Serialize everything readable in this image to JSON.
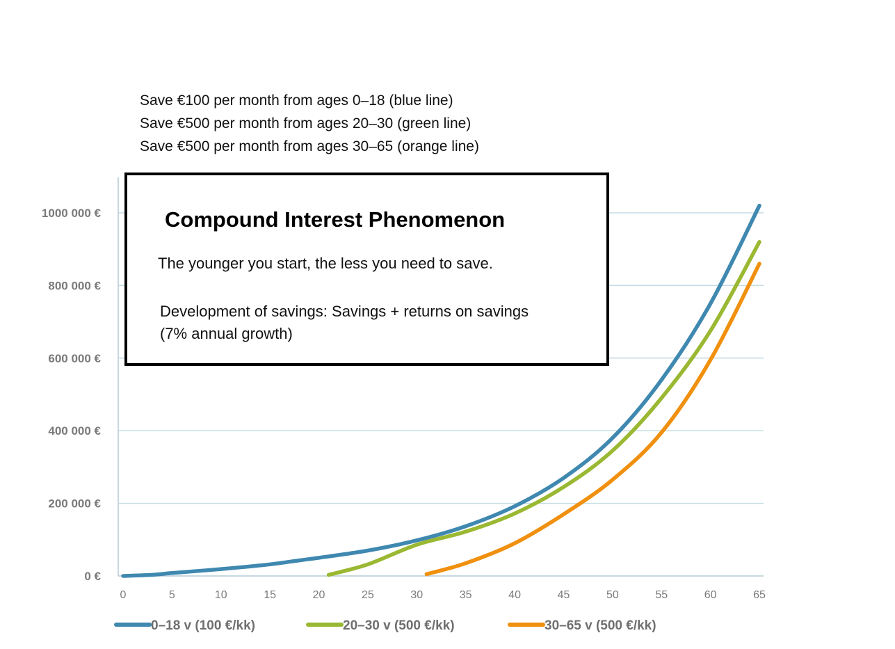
{
  "intro": {
    "lines": [
      "Save €100 per month from ages 0–18 (blue line)",
      "Save €500 per month from ages 20–30 (green line)",
      "Save €500 per month from ages 30–65 (orange line)"
    ]
  },
  "info_box": {
    "title": "Compound Interest Phenomenon",
    "subtitle": "The younger you start, the less you need to save.",
    "description_lines": [
      "Development of savings: Savings + returns on savings",
      "(7% annual growth)"
    ]
  },
  "colors": {
    "blue": "#3f88b0",
    "green": "#9ab832",
    "orange": "#f0900e",
    "grid": "#c5dbe4",
    "axis": "#b4ccd6"
  },
  "chart_data": {
    "type": "line",
    "xlabel": "",
    "ylabel": "",
    "xlim": [
      0,
      65
    ],
    "ylim": [
      0,
      1100000
    ],
    "x_ticks": [
      0,
      5,
      10,
      15,
      20,
      25,
      30,
      35,
      40,
      45,
      50,
      55,
      60,
      65
    ],
    "x_tick_labels": [
      "0",
      "5",
      "10",
      "15",
      "20",
      "25",
      "30",
      "35",
      "40",
      "45",
      "50",
      "55",
      "60",
      "65"
    ],
    "y_ticks": [
      0,
      200000,
      400000,
      600000,
      800000,
      1000000
    ],
    "y_tick_labels": [
      "0 €",
      "200 000 €",
      "400 000 €",
      "600 000 €",
      "800 000 €",
      "1000 000 €"
    ],
    "grid": true,
    "legend_position": "bottom",
    "series": [
      {
        "name": "0–18 v (100 €/kk)",
        "color": "#3f88b0",
        "x": [
          0,
          3,
          5,
          10,
          15,
          18,
          20,
          25,
          30,
          35,
          40,
          45,
          50,
          55,
          60,
          65
        ],
        "y": [
          0,
          3000,
          8000,
          19000,
          32000,
          43000,
          50000,
          70000,
          98000,
          137000,
          192000,
          270000,
          380000,
          540000,
          750000,
          1020000
        ]
      },
      {
        "name": "20–30 v (500 €/kk)",
        "color": "#9ab832",
        "x": [
          21,
          25,
          30,
          35,
          40,
          45,
          50,
          55,
          60,
          65
        ],
        "y": [
          3000,
          32000,
          86000,
          122000,
          172000,
          245000,
          345000,
          490000,
          675000,
          920000
        ]
      },
      {
        "name": "30–65 v (500 €/kk)",
        "color": "#f0900e",
        "x": [
          31,
          35,
          40,
          45,
          50,
          55,
          60,
          65
        ],
        "y": [
          5000,
          35000,
          90000,
          170000,
          265000,
          395000,
          595000,
          860000
        ]
      }
    ]
  }
}
